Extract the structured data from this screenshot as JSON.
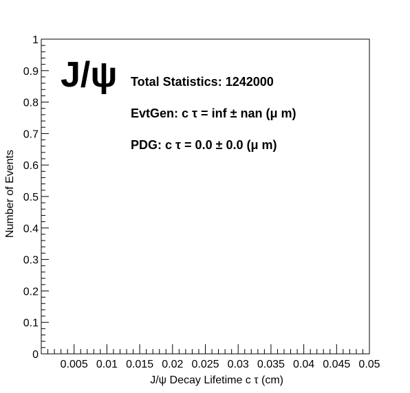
{
  "chart_data": {
    "type": "histogram",
    "title": "J/ψ",
    "xlabel": "J/ψ  Decay Lifetime c   τ (cm)",
    "ylabel": "Number of Events",
    "xlim": [
      0,
      0.05
    ],
    "ylim": [
      0,
      1
    ],
    "x_tick_labels": [
      "0.005",
      "0.01",
      "0.015",
      "0.02",
      "0.025",
      "0.03",
      "0.035",
      "0.04",
      "0.045",
      "0.05"
    ],
    "y_tick_labels": [
      "0",
      "0.1",
      "0.2",
      "0.3",
      "0.4",
      "0.5",
      "0.6",
      "0.7",
      "0.8",
      "0.9",
      "1"
    ],
    "series": [],
    "annotations": [
      "Total Statistics: 1242000",
      "EvtGen: c  τ = inf  ± nan (μ m)",
      "PDG: c  τ = 0.0  ± 0.0 (μ m)"
    ],
    "grid": false,
    "legend": "none"
  }
}
